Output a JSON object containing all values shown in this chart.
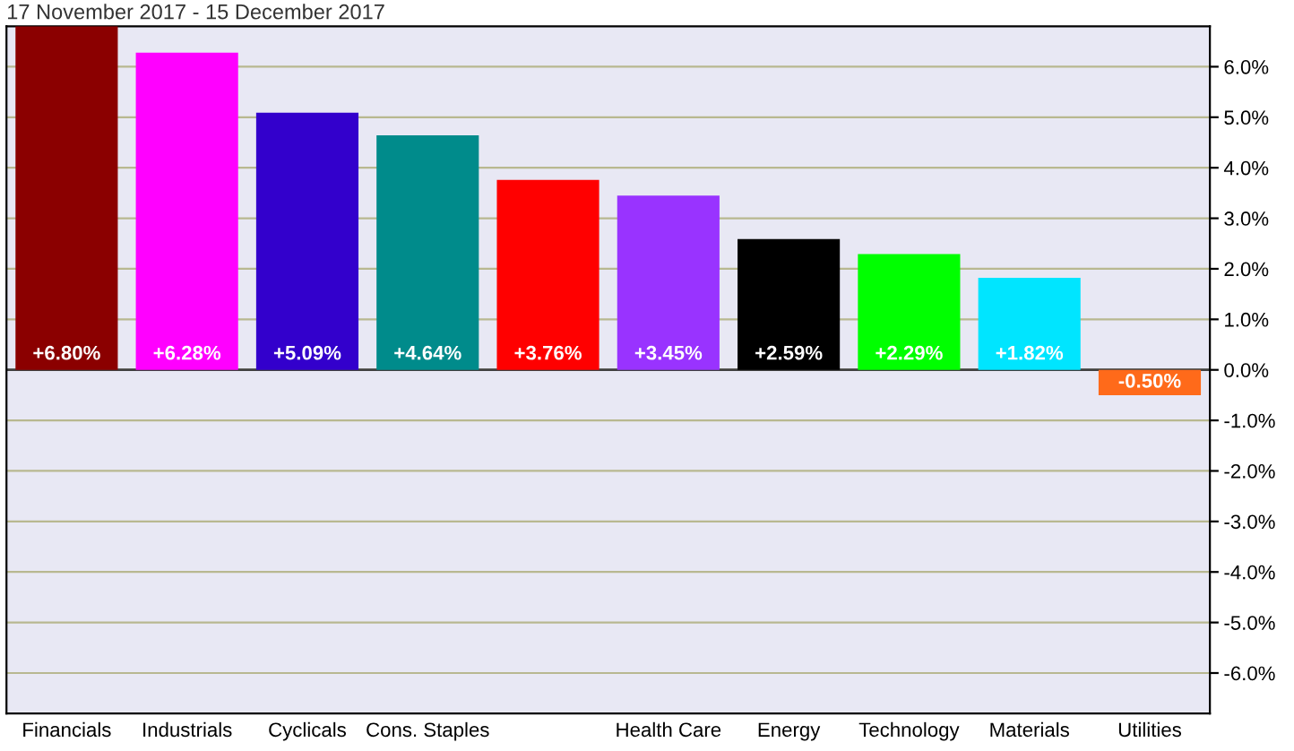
{
  "chart_data": {
    "type": "bar",
    "title": "17 November 2017 - 15 December 2017",
    "categories": [
      "Financials",
      "Industrials",
      "Cyclicals",
      "Cons. Staples",
      null,
      "Health Care",
      "Energy",
      "Technology",
      "Materials",
      "Utilities"
    ],
    "values": [
      6.8,
      6.28,
      5.09,
      4.64,
      3.76,
      3.45,
      2.59,
      2.29,
      1.82,
      -0.5
    ],
    "value_labels": [
      "+6.80%",
      "+6.28%",
      "+5.09%",
      "+4.64%",
      "+3.76%",
      "+3.45%",
      "+2.59%",
      "+2.29%",
      "+1.82%",
      "-0.50%"
    ],
    "colors": [
      "#8b0000",
      "#ff00ff",
      "#3300cc",
      "#008b8b",
      "#ff0000",
      "#9933ff",
      "#000000",
      "#00ff00",
      "#00e5ff",
      "#ff6a1a"
    ],
    "ylim": [
      -6.8,
      6.8
    ],
    "yticks": [
      {
        "value": 6,
        "label": "6.0%"
      },
      {
        "value": 5,
        "label": "5.0%"
      },
      {
        "value": 4,
        "label": "4.0%"
      },
      {
        "value": 3,
        "label": "3.0%"
      },
      {
        "value": 2,
        "label": "2.0%"
      },
      {
        "value": 1,
        "label": "1.0%"
      },
      {
        "value": 0,
        "label": "0.0%"
      },
      {
        "value": -1,
        "label": "-1.0%"
      },
      {
        "value": -2,
        "label": "-2.0%"
      },
      {
        "value": -3,
        "label": "-3.0%"
      },
      {
        "value": -4,
        "label": "-4.0%"
      },
      {
        "value": -5,
        "label": "-5.0%"
      },
      {
        "value": -6,
        "label": "-6.0%"
      }
    ],
    "grid": "y",
    "legend": false
  }
}
